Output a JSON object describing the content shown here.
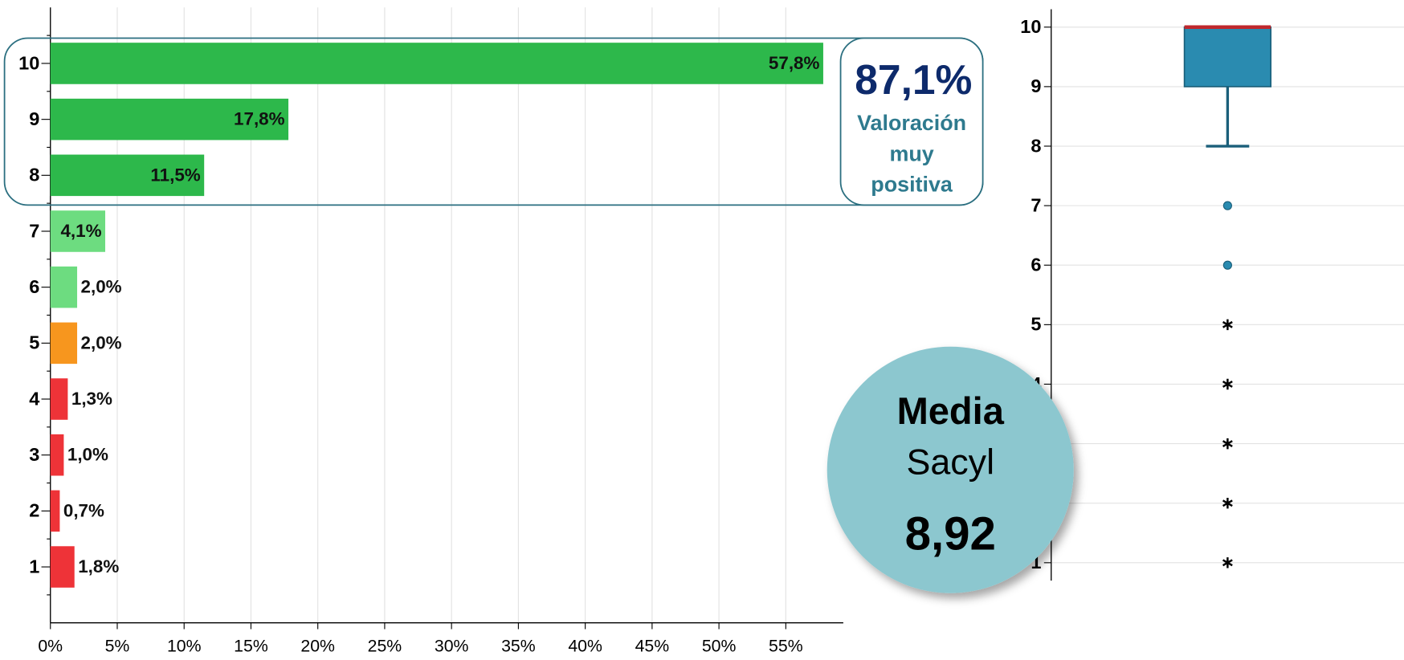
{
  "chart_data": [
    {
      "type": "bar",
      "orientation": "horizontal",
      "categories": [
        "10",
        "9",
        "8",
        "7",
        "6",
        "5",
        "4",
        "3",
        "2",
        "1"
      ],
      "values": [
        57.8,
        17.8,
        11.5,
        4.1,
        2.0,
        2.0,
        1.3,
        1.0,
        0.7,
        1.8
      ],
      "value_labels": [
        "57,8%",
        "17,8%",
        "11,5%",
        "4,1%",
        "2,0%",
        "2,0%",
        "1,3%",
        "1,0%",
        "0,7%",
        "1,8%"
      ],
      "colors": [
        "#2db84b",
        "#2db84b",
        "#2db84b",
        "#6ddc80",
        "#6ddc80",
        "#f7961e",
        "#ee3338",
        "#ee3338",
        "#ee3338",
        "#ee3338"
      ],
      "xlim": [
        0,
        59.3
      ],
      "xticks": [
        {
          "value": 0,
          "label": "0%"
        },
        {
          "value": 5,
          "label": "5%"
        },
        {
          "value": 10,
          "label": "10%"
        },
        {
          "value": 15,
          "label": "15%"
        },
        {
          "value": 20,
          "label": "20%"
        },
        {
          "value": 25,
          "label": "25%"
        },
        {
          "value": 30,
          "label": "30%"
        },
        {
          "value": 35,
          "label": "35%"
        },
        {
          "value": 40,
          "label": "40%"
        },
        {
          "value": 45,
          "label": "45%"
        },
        {
          "value": 50,
          "label": "50%"
        },
        {
          "value": 55,
          "label": "55%"
        }
      ],
      "grid": true,
      "highlight": {
        "value_label": "87,1%",
        "lines": [
          "Valoración",
          "muy",
          "positiva"
        ]
      }
    },
    {
      "type": "box",
      "ylim": [
        0.7,
        10.3
      ],
      "yticks": [
        1,
        2,
        3,
        4,
        5,
        6,
        7,
        8,
        9,
        10
      ],
      "grid": true,
      "q1": 9,
      "median": 10,
      "q3": 10,
      "whisker_low": 8,
      "whisker_high": 10,
      "outliers": [
        7,
        6
      ],
      "extremes": [
        5,
        4,
        3,
        2,
        1
      ],
      "color": "#2a8bb0",
      "median_color": "#c0282d"
    }
  ],
  "summary": {
    "title": "Media",
    "subtitle": "Sacyl",
    "value_label": "8,92"
  }
}
